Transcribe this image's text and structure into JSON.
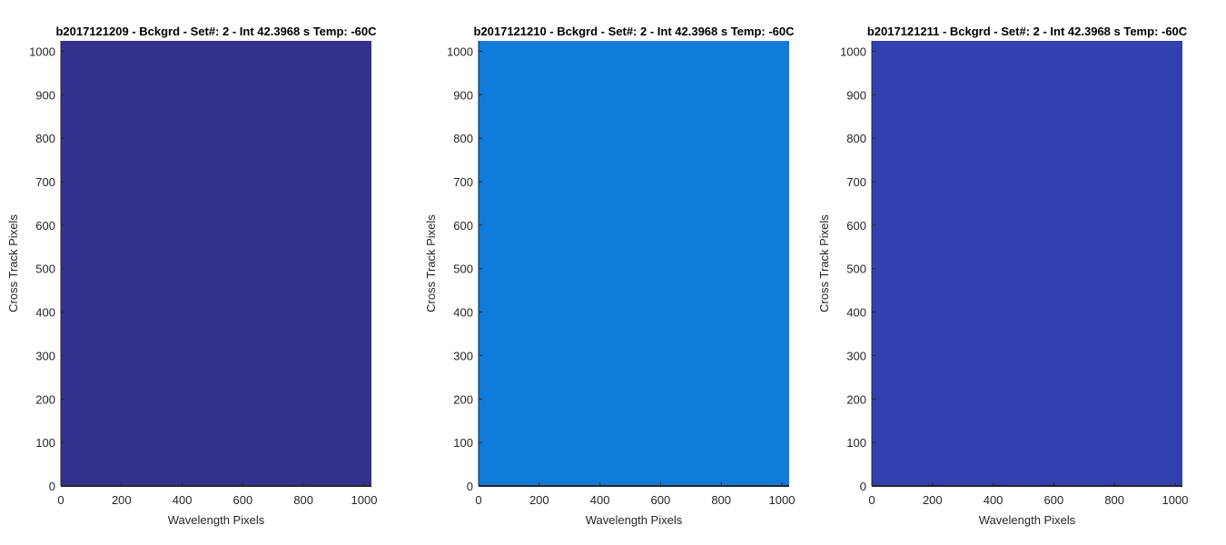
{
  "chart_data": [
    {
      "type": "heatmap",
      "title": "b2017121209 - Bckgrd - Set#: 2 - Int 42.3968 s Temp: -60C",
      "xlabel": "Wavelength Pixels",
      "ylabel": "Cross Track Pixels",
      "xlim": [
        0,
        1024
      ],
      "ylim": [
        0,
        1024
      ],
      "xticks": [
        0,
        200,
        400,
        600,
        800,
        1000
      ],
      "yticks": [
        0,
        100,
        200,
        300,
        400,
        500,
        600,
        700,
        800,
        900,
        1000
      ],
      "fill_color": "#35318f",
      "grid": false
    },
    {
      "type": "heatmap",
      "title": "b2017121210 - Bckgrd - Set#: 2 - Int 42.3968 s Temp: -60C",
      "xlabel": "Wavelength Pixels",
      "ylabel": "Cross Track Pixels",
      "xlim": [
        0,
        1024
      ],
      "ylim": [
        0,
        1024
      ],
      "xticks": [
        0,
        200,
        400,
        600,
        800,
        1000
      ],
      "yticks": [
        0,
        100,
        200,
        300,
        400,
        500,
        600,
        700,
        800,
        900,
        1000
      ],
      "fill_color": "#0f7bdb",
      "grid": false
    },
    {
      "type": "heatmap",
      "title": "b2017121211 - Bckgrd - Set#: 2 - Int 42.3968 s Temp: -60C",
      "xlabel": "Wavelength Pixels",
      "ylabel": "Cross Track Pixels",
      "xlim": [
        0,
        1024
      ],
      "ylim": [
        0,
        1024
      ],
      "xticks": [
        0,
        200,
        400,
        600,
        800,
        1000
      ],
      "yticks": [
        0,
        100,
        200,
        300,
        400,
        500,
        600,
        700,
        800,
        900,
        1000
      ],
      "fill_color": "#3340b0",
      "grid": false
    }
  ]
}
